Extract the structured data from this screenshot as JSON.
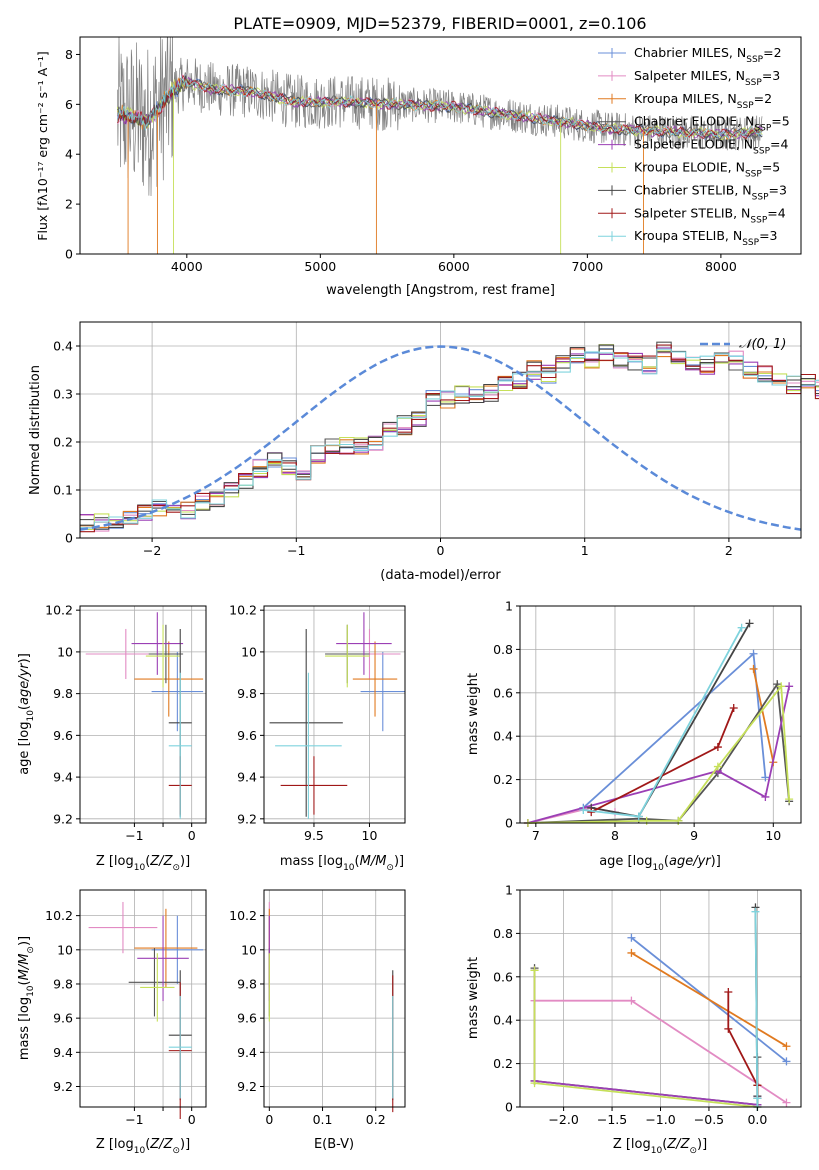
{
  "figure": {
    "title": "PLATE=0909, MJD=52379, FIBERID=0001, z=0.106"
  },
  "colors": {
    "models": [
      "#6a8fd8",
      "#e28bc3",
      "#e07a20",
      "#555555",
      "#9b3fb5",
      "#c6e05a",
      "#444444",
      "#a01818",
      "#7fd3dd"
    ],
    "data": "#808080",
    "normal": "#5b8ad8",
    "grid": "#b0b0b0"
  },
  "chart_data": [
    {
      "id": "spectrum",
      "type": "line",
      "title": "PLATE=0909, MJD=52379, FIBERID=0001, z=0.106",
      "xlabel": "wavelength [Angstrom, rest frame]",
      "ylabel": "Flux [fλ10⁻¹⁷ erg cm⁻² s⁻¹ A⁻¹]",
      "xlim": [
        3200,
        8600
      ],
      "ylim": [
        0,
        8.7
      ],
      "xticks": [
        4000,
        5000,
        6000,
        7000,
        8000
      ],
      "yticks": [
        0,
        2,
        4,
        6,
        8
      ],
      "grid": false,
      "legend_position": "top-right",
      "data_range": [
        3480,
        8310
      ],
      "series": [
        {
          "name": "Chabrier MILES, N_SSP=2",
          "label_main": "Chabrier MILES, N",
          "label_sub": "SSP",
          "label_tail": "=2"
        },
        {
          "name": "Salpeter MILES, N_SSP=3",
          "label_main": "Salpeter MILES, N",
          "label_sub": "SSP",
          "label_tail": "=3"
        },
        {
          "name": "Kroupa MILES, N_SSP=2",
          "label_main": "Kroupa MILES, N",
          "label_sub": "SSP",
          "label_tail": "=2"
        },
        {
          "name": "Chabrier ELODIE, N_SSP=5",
          "label_main": "Chabrier ELODIE, N",
          "label_sub": "SSP",
          "label_tail": "=5"
        },
        {
          "name": "Salpeter ELODIE, N_SSP=4",
          "label_main": "Salpeter ELODIE, N",
          "label_sub": "SSP",
          "label_tail": "=4"
        },
        {
          "name": "Kroupa ELODIE, N_SSP=5",
          "label_main": "Kroupa ELODIE, N",
          "label_sub": "SSP",
          "label_tail": "=5"
        },
        {
          "name": "Chabrier STELIB, N_SSP=3",
          "label_main": "Chabrier STELIB, N",
          "label_sub": "SSP",
          "label_tail": "=3"
        },
        {
          "name": "Salpeter STELIB, N_SSP=4",
          "label_main": "Salpeter STELIB, N",
          "label_sub": "SSP",
          "label_tail": "=4"
        },
        {
          "name": "Kroupa STELIB, N_SSP=3",
          "label_main": "Kroupa STELIB, N",
          "label_sub": "SSP",
          "label_tail": "=3"
        }
      ],
      "continuum": {
        "x": [
          3480,
          3600,
          3700,
          3800,
          3900,
          4000,
          4200,
          4500,
          4800,
          5200,
          5600,
          6000,
          6400,
          6800,
          7200,
          7600,
          8000,
          8310
        ],
        "y": [
          5.6,
          5.5,
          5.3,
          5.9,
          6.6,
          6.9,
          6.6,
          6.5,
          6.1,
          6.1,
          6.0,
          5.9,
          5.6,
          5.3,
          5.0,
          4.9,
          4.8,
          4.9
        ]
      }
    },
    {
      "id": "residuals",
      "type": "step",
      "xlabel": "(data-model)/error",
      "ylabel": "Normed distribution",
      "xlim": [
        -2.5,
        2.5
      ],
      "ylim": [
        0,
        0.45
      ],
      "xticks": [
        -2,
        -1,
        0,
        1,
        2
      ],
      "yticks": [
        0.0,
        0.1,
        0.2,
        0.3,
        0.4
      ],
      "grid": true,
      "legend_position": "top-right",
      "legend": "𝒩(0, 1)",
      "bin_edges_start": -2.5,
      "bin_width": 0.1,
      "envelope": [
        0.03,
        0.032,
        0.035,
        0.045,
        0.05,
        0.06,
        0.065,
        0.06,
        0.075,
        0.085,
        0.1,
        0.12,
        0.145,
        0.16,
        0.15,
        0.14,
        0.175,
        0.19,
        0.195,
        0.19,
        0.2,
        0.23,
        0.235,
        0.245,
        0.295,
        0.29,
        0.3,
        0.3,
        0.3,
        0.32,
        0.33,
        0.35,
        0.34,
        0.36,
        0.38,
        0.37,
        0.385,
        0.37,
        0.365,
        0.36,
        0.39,
        0.38,
        0.36,
        0.36,
        0.375,
        0.37,
        0.35,
        0.34,
        0.33,
        0.32,
        0.33,
        0.31,
        0.3,
        0.3,
        0.28,
        0.26,
        0.25,
        0.25,
        0.23,
        0.215,
        0.2,
        0.19,
        0.17,
        0.165,
        0.15,
        0.14,
        0.13,
        0.13,
        0.12,
        0.1,
        0.09,
        0.07,
        0.06,
        0.05,
        0.045,
        0.04,
        0.037,
        0.033,
        0.03,
        0.03
      ]
    },
    {
      "id": "age-vs-Z",
      "type": "errorbar",
      "xlabel": "Z [log10(Z/Z⊙)]",
      "ylabel": "age [log10(age/yr)]",
      "xlim": [
        -1.95,
        0.25
      ],
      "ylim": [
        9.18,
        10.22
      ],
      "xticks": [
        -1,
        -0.5,
        0
      ],
      "xticklabels": [
        "−1",
        "",
        "0"
      ],
      "yticks": [
        9.2,
        9.4,
        9.6,
        9.8,
        10.0,
        10.2
      ],
      "grid": true,
      "points": [
        {
          "series": 0,
          "x": -0.25,
          "y": 9.81,
          "xerr": 0.45,
          "yerr": 0.19
        },
        {
          "series": 1,
          "x": -1.15,
          "y": 9.99,
          "xerr": 0.7,
          "yerr": 0.12
        },
        {
          "series": 2,
          "x": -0.4,
          "y": 9.87,
          "xerr": 0.6,
          "yerr": 0.18
        },
        {
          "series": 3,
          "x": -0.45,
          "y": 9.99,
          "xerr": 0.3,
          "yerr": 0.14
        },
        {
          "series": 4,
          "x": -0.6,
          "y": 10.04,
          "xerr": 0.45,
          "yerr": 0.15
        },
        {
          "series": 5,
          "x": -0.5,
          "y": 9.98,
          "xerr": 0.3,
          "yerr": 0.15
        },
        {
          "series": 6,
          "x": -0.2,
          "y": 9.66,
          "xerr": 0.2,
          "yerr": 0.45
        },
        {
          "series": 7,
          "x": -0.2,
          "y": 9.36,
          "xerr": 0.2,
          "yerr": 0.14
        },
        {
          "series": 8,
          "x": -0.2,
          "y": 9.55,
          "xerr": 0.2,
          "yerr": 0.35
        }
      ]
    },
    {
      "id": "age-vs-mass",
      "type": "errorbar",
      "xlabel": "mass [log10(M/M⊙)]",
      "xlim": [
        9.05,
        10.32
      ],
      "ylim": [
        9.18,
        10.22
      ],
      "xticks": [
        9.5,
        10.0
      ],
      "yticks": [
        9.2,
        9.4,
        9.6,
        9.8,
        10.0,
        10.2
      ],
      "grid": true,
      "points": [
        {
          "series": 0,
          "x": 10.12,
          "y": 9.81,
          "xerr": 0.2,
          "yerr": 0.19
        },
        {
          "series": 1,
          "x": 10.0,
          "y": 9.99,
          "xerr": 0.28,
          "yerr": 0.12
        },
        {
          "series": 2,
          "x": 10.05,
          "y": 9.87,
          "xerr": 0.2,
          "yerr": 0.18
        },
        {
          "series": 3,
          "x": 9.8,
          "y": 9.99,
          "xerr": 0.2,
          "yerr": 0.14
        },
        {
          "series": 4,
          "x": 9.95,
          "y": 10.04,
          "xerr": 0.25,
          "yerr": 0.15
        },
        {
          "series": 5,
          "x": 9.8,
          "y": 9.98,
          "xerr": 0.2,
          "yerr": 0.15
        },
        {
          "series": 6,
          "x": 9.43,
          "y": 9.66,
          "xerr": 0.33,
          "yerr": 0.45
        },
        {
          "series": 7,
          "x": 9.5,
          "y": 9.36,
          "xerr": 0.3,
          "yerr": 0.14
        },
        {
          "series": 8,
          "x": 9.45,
          "y": 9.55,
          "xerr": 0.3,
          "yerr": 0.35
        }
      ]
    },
    {
      "id": "weight-vs-age",
      "type": "line",
      "xlabel": "age [log10(age/yr)]",
      "ylabel": "mass weight",
      "xlim": [
        6.8,
        10.35
      ],
      "ylim": [
        0,
        1.0
      ],
      "xticks": [
        7,
        8,
        9,
        10
      ],
      "yticks": [
        0.0,
        0.2,
        0.4,
        0.6,
        0.8,
        1.0
      ],
      "grid": true,
      "series": [
        {
          "series": 0,
          "x": [
            7.6,
            9.75,
            9.9
          ],
          "y": [
            0.07,
            0.78,
            0.21
          ]
        },
        {
          "series": 1,
          "x": [
            6.9,
            7.7,
            8.0
          ],
          "y": [
            0.0,
            0.07,
            0.05
          ]
        },
        {
          "series": 2,
          "x": [
            9.75,
            10.0
          ],
          "y": [
            0.71,
            0.28
          ]
        },
        {
          "series": 3,
          "x": [
            6.9,
            8.3,
            8.8,
            9.3,
            10.05,
            10.2
          ],
          "y": [
            0.0,
            0.02,
            0.01,
            0.23,
            0.64,
            0.1
          ]
        },
        {
          "series": 4,
          "x": [
            6.9,
            9.3,
            9.9,
            10.2
          ],
          "y": [
            0.0,
            0.24,
            0.12,
            0.63
          ]
        },
        {
          "series": 5,
          "x": [
            6.9,
            8.4,
            8.8,
            9.3,
            10.1,
            10.2
          ],
          "y": [
            0.0,
            0.01,
            0.01,
            0.26,
            0.63,
            0.11
          ]
        },
        {
          "series": 6,
          "x": [
            7.7,
            8.3,
            9.7
          ],
          "y": [
            0.07,
            0.03,
            0.92
          ]
        },
        {
          "series": 7,
          "x": [
            7.7,
            9.3,
            9.5
          ],
          "y": [
            0.05,
            0.35,
            0.53
          ]
        },
        {
          "series": 8,
          "x": [
            7.6,
            8.3,
            9.6
          ],
          "y": [
            0.06,
            0.03,
            0.9
          ]
        }
      ]
    },
    {
      "id": "mass-vs-Z",
      "type": "errorbar",
      "xlabel": "Z [log10(Z/Z⊙)]",
      "ylabel": "mass [log10(M/M⊙)]",
      "xlim": [
        -1.95,
        0.25
      ],
      "ylim": [
        9.08,
        10.35
      ],
      "xticks": [
        -1,
        -0.5,
        0
      ],
      "xticklabels": [
        "−1",
        "",
        "0"
      ],
      "yticks": [
        9.2,
        9.4,
        9.6,
        9.8,
        10.0,
        10.2
      ],
      "grid": true,
      "points": [
        {
          "series": 0,
          "x": -0.25,
          "y": 10.0,
          "xerr": 0.45,
          "yerr": 0.2
        },
        {
          "series": 1,
          "x": -1.2,
          "y": 10.13,
          "xerr": 0.6,
          "yerr": 0.15
        },
        {
          "series": 2,
          "x": -0.45,
          "y": 10.01,
          "xerr": 0.55,
          "yerr": 0.23
        },
        {
          "series": 3,
          "x": -0.65,
          "y": 9.81,
          "xerr": 0.45,
          "yerr": 0.2
        },
        {
          "series": 4,
          "x": -0.5,
          "y": 9.95,
          "xerr": 0.45,
          "yerr": 0.25
        },
        {
          "series": 5,
          "x": -0.6,
          "y": 9.78,
          "xerr": 0.3,
          "yerr": 0.2
        },
        {
          "series": 6,
          "x": -0.2,
          "y": 9.5,
          "xerr": 0.2,
          "yerr": 0.38
        },
        {
          "series": 7,
          "x": -0.2,
          "y": 9.41,
          "xerr": 0.2,
          "yerr": 0.4
        },
        {
          "series": 8,
          "x": -0.2,
          "y": 9.43,
          "xerr": 0.2,
          "yerr": 0.3
        }
      ]
    },
    {
      "id": "ebv",
      "type": "errorbar",
      "xlabel": "E(B-V)",
      "xlim": [
        -0.01,
        0.255
      ],
      "ylim": [
        9.08,
        10.35
      ],
      "xticks": [
        0.0,
        0.1,
        0.2
      ],
      "yticks": [
        9.2,
        9.4,
        9.6,
        9.8,
        10.0,
        10.2
      ],
      "grid": true,
      "points": [
        {
          "series": 0,
          "x": 0.0,
          "y": 10.0,
          "xerr": 0.0,
          "yerr": 0.2
        },
        {
          "series": 1,
          "x": 0.0,
          "y": 10.13,
          "xerr": 0.0,
          "yerr": 0.15
        },
        {
          "series": 2,
          "x": 0.0,
          "y": 10.01,
          "xerr": 0.0,
          "yerr": 0.23
        },
        {
          "series": 3,
          "x": 0.0,
          "y": 9.81,
          "xerr": 0.0,
          "yerr": 0.2
        },
        {
          "series": 4,
          "x": 0.0,
          "y": 9.95,
          "xerr": 0.0,
          "yerr": 0.25
        },
        {
          "series": 5,
          "x": 0.0,
          "y": 9.78,
          "xerr": 0.0,
          "yerr": 0.2
        },
        {
          "series": 6,
          "x": 0.232,
          "y": 9.5,
          "xerr": 0.0,
          "yerr": 0.38
        },
        {
          "series": 7,
          "x": 0.232,
          "y": 9.45,
          "xerr": 0.0,
          "yerr": 0.4
        },
        {
          "series": 8,
          "x": 0.232,
          "y": 9.43,
          "xerr": 0.0,
          "yerr": 0.3
        }
      ]
    },
    {
      "id": "weight-vs-Z",
      "type": "line",
      "xlabel": "Z [log10(Z/Z⊙)]",
      "ylabel": "mass weight",
      "xlim": [
        -2.45,
        0.45
      ],
      "ylim": [
        0,
        1.0
      ],
      "xticks": [
        -2.0,
        -1.5,
        -1.0,
        -0.5,
        0.0
      ],
      "xticklabels": [
        "−2.0",
        "−1.5",
        "−1.0",
        "−0.5",
        "0.0"
      ],
      "yticks": [
        0.0,
        0.2,
        0.4,
        0.6,
        0.8,
        1.0
      ],
      "grid": true,
      "series": [
        {
          "series": 0,
          "x": [
            -1.3,
            0.3
          ],
          "y": [
            0.78,
            0.21
          ]
        },
        {
          "series": 1,
          "x": [
            -2.3,
            -1.3,
            0.3
          ],
          "y": [
            0.49,
            0.49,
            0.02
          ]
        },
        {
          "series": 2,
          "x": [
            -1.3,
            0.3
          ],
          "y": [
            0.71,
            0.28
          ]
        },
        {
          "series": 3,
          "x": [
            -2.3,
            -2.3,
            0.0,
            0.0
          ],
          "y": [
            0.64,
            0.12,
            0.01,
            0.23
          ]
        },
        {
          "series": 4,
          "x": [
            -2.3,
            -2.3,
            0.0,
            0.0
          ],
          "y": [
            0.63,
            0.12,
            0.01,
            0.05
          ]
        },
        {
          "series": 5,
          "x": [
            -2.3,
            -2.3,
            0.0,
            0.0
          ],
          "y": [
            0.63,
            0.11,
            0.0,
            0.1
          ]
        },
        {
          "series": 6,
          "x": [
            -0.02,
            0.0,
            0.0
          ],
          "y": [
            0.92,
            0.0,
            0.05
          ]
        },
        {
          "series": 7,
          "x": [
            -0.3,
            -0.3,
            0.0,
            0.0
          ],
          "y": [
            0.53,
            0.36,
            0.1,
            0.04
          ]
        },
        {
          "series": 8,
          "x": [
            -0.02,
            0.0,
            0.0
          ],
          "y": [
            0.9,
            0.0,
            0.04
          ]
        }
      ]
    }
  ]
}
